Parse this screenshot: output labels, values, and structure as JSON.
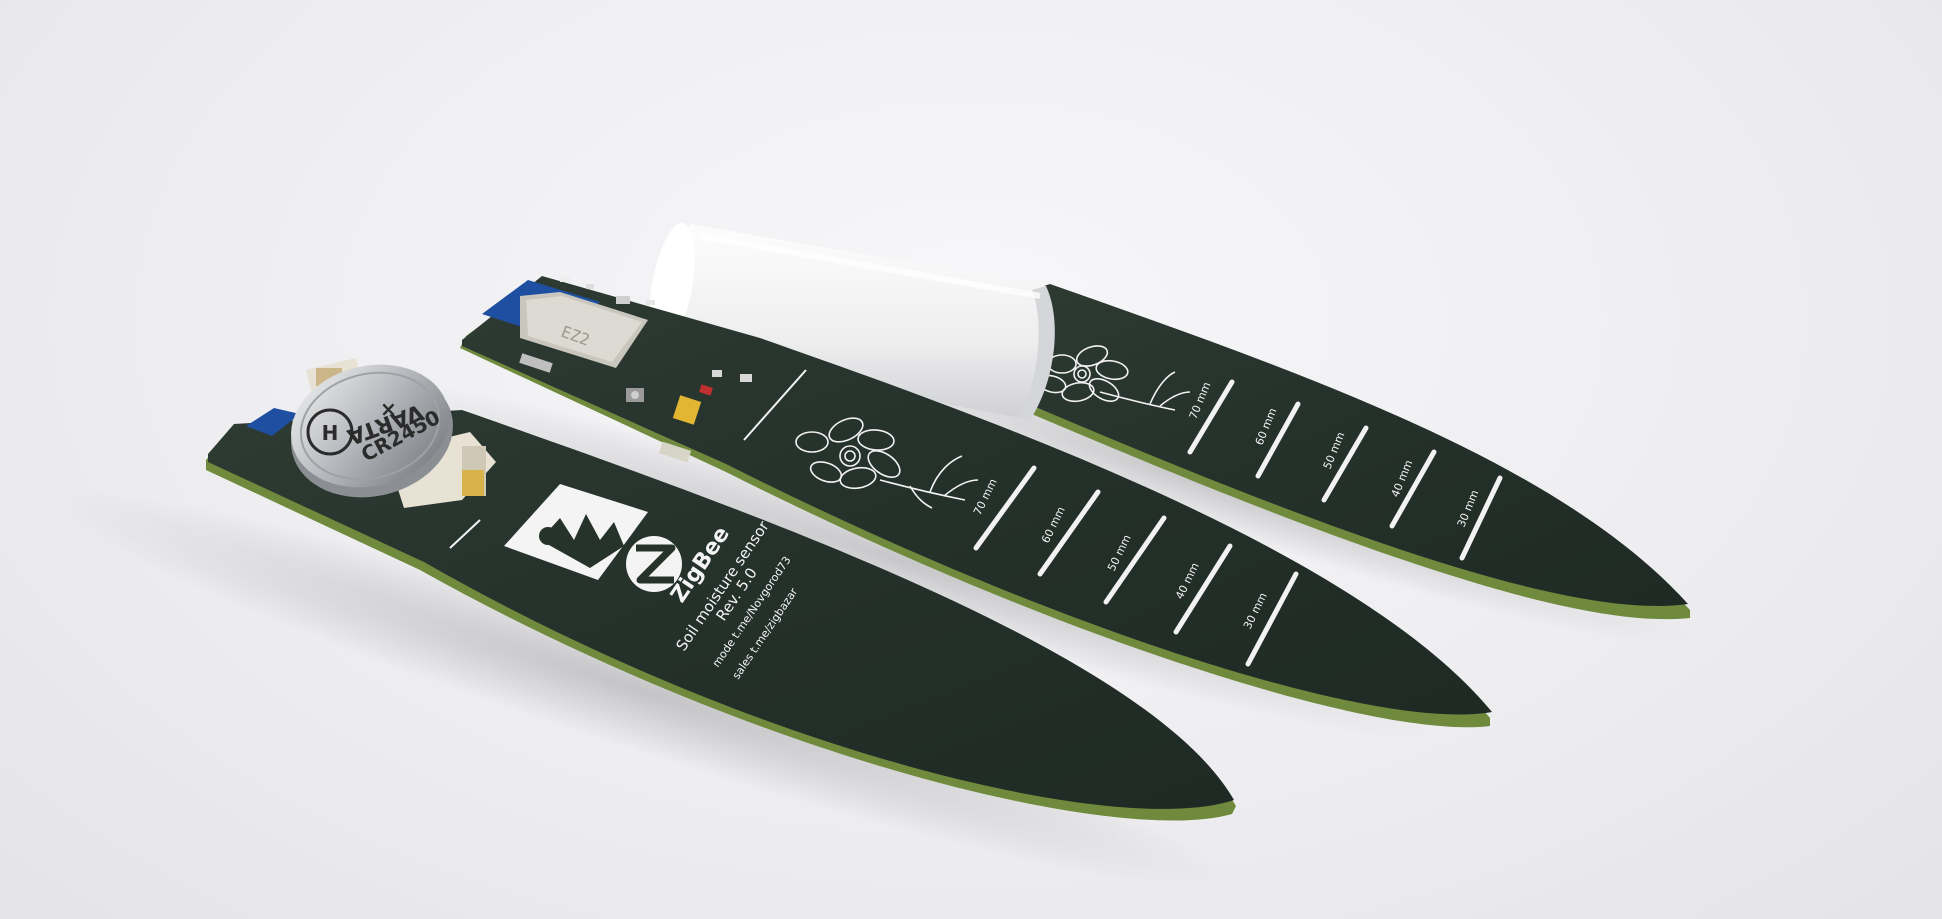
{
  "photo": {
    "subject": "Zigbee soil moisture sensor PCB probes",
    "background_color": "#eeeef1",
    "pcb_color": "#26332b",
    "pcb_edge_color": "#6f8a3c",
    "silkscreen_color": "#f4f4f4"
  },
  "probe_left": {
    "battery_brand": "VARTA",
    "battery_model": "CR2450",
    "logo_text": "ZigBee",
    "title": "Soil moisture sensor",
    "revision": "Rev. 5.0",
    "line_mode": "mode t.me/Novgorod73",
    "line_sales": "sales t.me/zigbazar"
  },
  "probe_middle": {
    "scale_labels": [
      "70 mm",
      "60 mm",
      "50 mm",
      "40 mm",
      "30 mm"
    ]
  },
  "probe_right": {
    "scale_labels": [
      "70 mm",
      "60 mm",
      "50 mm",
      "40 mm",
      "30 mm"
    ]
  }
}
